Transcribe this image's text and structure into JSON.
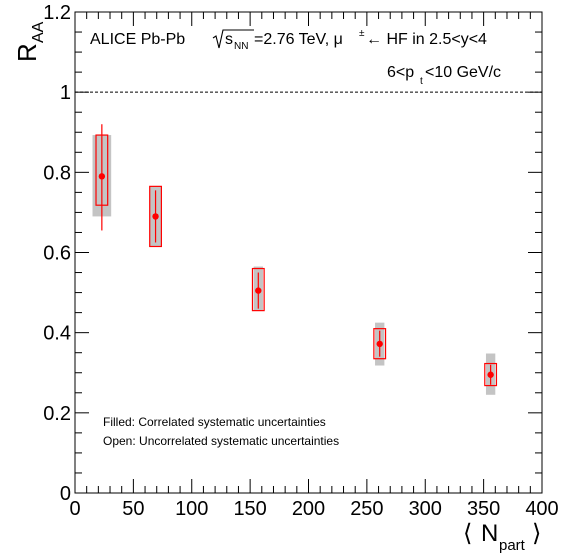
{
  "chart_data": {
    "type": "scatter",
    "title_line1_prefix": "ALICE Pb-Pb ",
    "title_sqrt": "s",
    "title_sqrt_sub": "NN",
    "title_line1_suffix": "=2.76 TeV, μ",
    "title_mu_sup": "±",
    "title_line1_end": "← HF in 2.5<y<4",
    "subtitle_prefix": "6<p",
    "subtitle_sub": "t",
    "subtitle_suffix": "<10 GeV/c",
    "ylabel": "R",
    "ylabel_sub": "AA",
    "xlabel_left": "⟨",
    "xlabel": "N",
    "xlabel_sub": "part",
    "xlabel_right": "⟩",
    "xlim": [
      0,
      400
    ],
    "ylim": [
      0,
      1.2
    ],
    "x_ticks": [
      {
        "value": 0,
        "label": "0"
      },
      {
        "value": 50,
        "label": "50"
      },
      {
        "value": 100,
        "label": "100"
      },
      {
        "value": 150,
        "label": "150"
      },
      {
        "value": 200,
        "label": "200"
      },
      {
        "value": 250,
        "label": "250"
      },
      {
        "value": 300,
        "label": "300"
      },
      {
        "value": 350,
        "label": "350"
      },
      {
        "value": 400,
        "label": "400"
      }
    ],
    "y_ticks": [
      {
        "value": 0,
        "label": "0"
      },
      {
        "value": 0.2,
        "label": "0.2"
      },
      {
        "value": 0.4,
        "label": "0.4"
      },
      {
        "value": 0.6,
        "label": "0.6"
      },
      {
        "value": 0.8,
        "label": "0.8"
      },
      {
        "value": 1,
        "label": "1"
      },
      {
        "value": 1.2,
        "label": "1.2"
      }
    ],
    "reference_line": 1,
    "legend_notes": [
      "Filled: Correlated systematic uncertainties",
      "Open: Uncorrelated systematic uncertainties"
    ],
    "points": [
      {
        "x": 23,
        "y": 0.79,
        "stat": [
          0.655,
          0.92
        ],
        "uncorr": [
          0.718,
          0.893
        ],
        "corr": [
          0.69,
          0.893
        ],
        "corr_w": 8
      },
      {
        "x": 69,
        "y": 0.69,
        "stat": [
          0.625,
          0.755
        ],
        "uncorr": [
          0.615,
          0.765
        ],
        "corr": [
          0.615,
          0.765
        ],
        "corr_w": 5
      },
      {
        "x": 157,
        "y": 0.505,
        "stat": [
          0.46,
          0.55
        ],
        "uncorr": [
          0.455,
          0.56
        ],
        "corr": [
          0.455,
          0.565
        ],
        "corr_w": 4
      },
      {
        "x": 261,
        "y": 0.372,
        "stat": [
          0.34,
          0.405
        ],
        "uncorr": [
          0.335,
          0.41
        ],
        "corr": [
          0.318,
          0.425
        ],
        "corr_w": 4
      },
      {
        "x": 356,
        "y": 0.295,
        "stat": [
          0.27,
          0.32
        ],
        "uncorr": [
          0.268,
          0.323
        ],
        "corr": [
          0.245,
          0.348
        ],
        "corr_w": 4
      }
    ],
    "colors": {
      "point": "#ff0000",
      "corr_box": "#c4c4c4",
      "uncorr_box": "#ff0000",
      "axis": "#000000"
    },
    "grid": false
  }
}
